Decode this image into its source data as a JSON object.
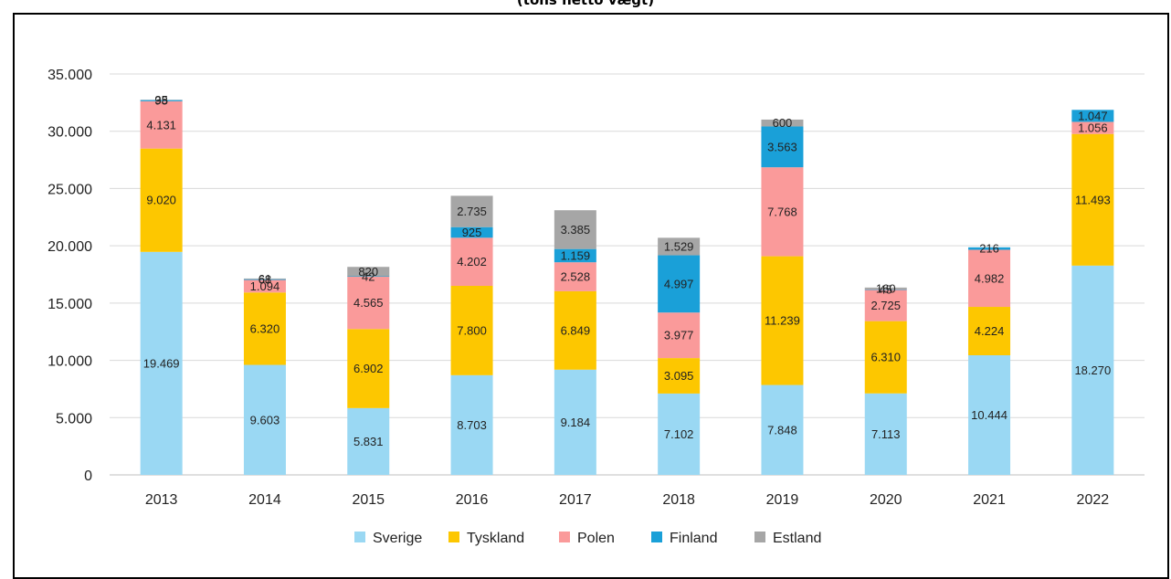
{
  "chart_data": {
    "type": "bar",
    "stacked": true,
    "title": "(tons netto vægt)",
    "categories": [
      "2013",
      "2014",
      "2015",
      "2016",
      "2017",
      "2018",
      "2019",
      "2020",
      "2021",
      "2022"
    ],
    "ylim": [
      0,
      35000
    ],
    "yticks": [
      0,
      5000,
      10000,
      15000,
      20000,
      25000,
      30000,
      35000
    ],
    "ytick_labels": [
      "0",
      "5.000",
      "10.000",
      "15.000",
      "20.000",
      "25.000",
      "30.000",
      "35.000"
    ],
    "grid": true,
    "legend_position": "bottom",
    "series": [
      {
        "name": "Sverige",
        "color": "#9ad8f3",
        "values": [
          19469,
          9603,
          5831,
          8703,
          9184,
          7102,
          7848,
          7113,
          10444,
          18270
        ],
        "labels": [
          "19.469",
          "9.603",
          "5.831",
          "8.703",
          "9.184",
          "7.102",
          "7.848",
          "7.113",
          "10.444",
          "18.270"
        ]
      },
      {
        "name": "Tyskland",
        "color": "#fdc700",
        "values": [
          9020,
          6320,
          6902,
          7800,
          6849,
          3095,
          11239,
          6310,
          4224,
          11493
        ],
        "labels": [
          "9.020",
          "6.320",
          "6.902",
          "7.800",
          "6.849",
          "3.095",
          "11.239",
          "6.310",
          "4.224",
          "11.493"
        ]
      },
      {
        "name": "Polen",
        "color": "#fa9a9a",
        "values": [
          4131,
          1094,
          4565,
          4202,
          2528,
          3977,
          7768,
          2725,
          4982,
          1056
        ],
        "labels": [
          "4.131",
          "1.094",
          "4.565",
          "4.202",
          "2.528",
          "3.977",
          "7.768",
          "2.725",
          "4.982",
          "1.056"
        ]
      },
      {
        "name": "Finland",
        "color": "#1aa0d8",
        "values": [
          98,
          68,
          42,
          925,
          1159,
          4997,
          3563,
          45,
          216,
          1047
        ],
        "labels": [
          "98",
          "68",
          "42",
          "925",
          "1.159",
          "4.997",
          "3.563",
          "45",
          "216",
          "1.047"
        ]
      },
      {
        "name": "Estland",
        "color": "#a6a6a6",
        "values": [
          35,
          61,
          820,
          2735,
          3385,
          1529,
          600,
          160,
          0,
          0
        ],
        "labels": [
          "35",
          "61",
          "820",
          "2.735",
          "3.385",
          "1.529",
          "600",
          "160",
          "",
          ""
        ]
      }
    ]
  }
}
